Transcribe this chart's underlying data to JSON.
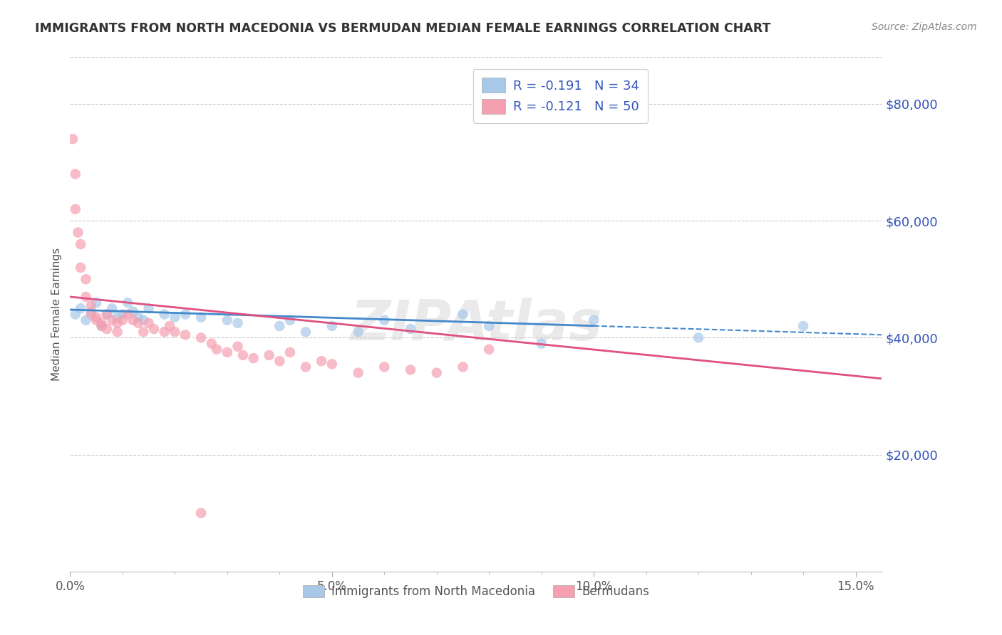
{
  "title": "IMMIGRANTS FROM NORTH MACEDONIA VS BERMUDAN MEDIAN FEMALE EARNINGS CORRELATION CHART",
  "source_text": "Source: ZipAtlas.com",
  "ylabel": "Median Female Earnings",
  "xlim": [
    0,
    0.155
  ],
  "ylim": [
    0,
    88000
  ],
  "xticks": [
    0.0,
    0.05,
    0.1,
    0.15
  ],
  "xticklabels": [
    "0.0%",
    "5.0%",
    "10.0%",
    "15.0%"
  ],
  "yticks_right": [
    20000,
    40000,
    60000,
    80000
  ],
  "ytick_labels_right": [
    "$20,000",
    "$40,000",
    "$60,000",
    "$80,000"
  ],
  "grid_color": "#cccccc",
  "background_color": "#ffffff",
  "watermark": "ZIPAtlas",
  "legend_R1": "R = -0.191",
  "legend_N1": "N = 34",
  "legend_R2": "R = -0.121",
  "legend_N2": "N = 50",
  "series1_label": "Immigrants from North Macedonia",
  "series2_label": "Bermudans",
  "series1_color": "#a8c8e8",
  "series2_color": "#f4a0b0",
  "series1_line_color": "#4488cc",
  "series2_line_color": "#e05080",
  "legend_text_color": "#3355bb",
  "blue_scatter_x": [
    0.001,
    0.002,
    0.003,
    0.004,
    0.005,
    0.006,
    0.007,
    0.008,
    0.009,
    0.01,
    0.011,
    0.012,
    0.013,
    0.014,
    0.015,
    0.018,
    0.02,
    0.022,
    0.025,
    0.03,
    0.032,
    0.04,
    0.042,
    0.045,
    0.05,
    0.055,
    0.06,
    0.065,
    0.075,
    0.08,
    0.09,
    0.1,
    0.12,
    0.14
  ],
  "blue_scatter_y": [
    44000,
    45000,
    43000,
    44500,
    46000,
    42000,
    44000,
    45000,
    43500,
    44000,
    46000,
    44500,
    43500,
    43000,
    45000,
    44000,
    43500,
    44000,
    43500,
    43000,
    42500,
    42000,
    43000,
    41000,
    42000,
    41000,
    43000,
    41500,
    44000,
    42000,
    39000,
    43000,
    40000,
    42000
  ],
  "pink_scatter_x": [
    0.0005,
    0.001,
    0.001,
    0.0015,
    0.002,
    0.002,
    0.003,
    0.003,
    0.004,
    0.004,
    0.005,
    0.005,
    0.006,
    0.006,
    0.007,
    0.007,
    0.008,
    0.009,
    0.009,
    0.01,
    0.011,
    0.012,
    0.013,
    0.014,
    0.015,
    0.016,
    0.018,
    0.019,
    0.02,
    0.022,
    0.025,
    0.027,
    0.028,
    0.03,
    0.032,
    0.033,
    0.035,
    0.038,
    0.04,
    0.042,
    0.045,
    0.048,
    0.05,
    0.055,
    0.06,
    0.065,
    0.07,
    0.075,
    0.08,
    0.025
  ],
  "pink_scatter_y": [
    74000,
    68000,
    62000,
    58000,
    56000,
    52000,
    50000,
    47000,
    45500,
    44000,
    43500,
    43000,
    42500,
    42000,
    44000,
    41500,
    43000,
    42500,
    41000,
    43000,
    44000,
    43000,
    42500,
    41000,
    42500,
    41500,
    41000,
    42000,
    41000,
    40500,
    40000,
    39000,
    38000,
    37500,
    38500,
    37000,
    36500,
    37000,
    36000,
    37500,
    35000,
    36000,
    35500,
    34000,
    35000,
    34500,
    34000,
    35000,
    38000,
    10000
  ],
  "blue_trend_x": [
    0.0,
    0.155
  ],
  "blue_trend_y": [
    44800,
    40500
  ],
  "blue_trend_solid_end": 0.1,
  "pink_trend_x": [
    0.0,
    0.155
  ],
  "pink_trend_y": [
    47000,
    33000
  ]
}
